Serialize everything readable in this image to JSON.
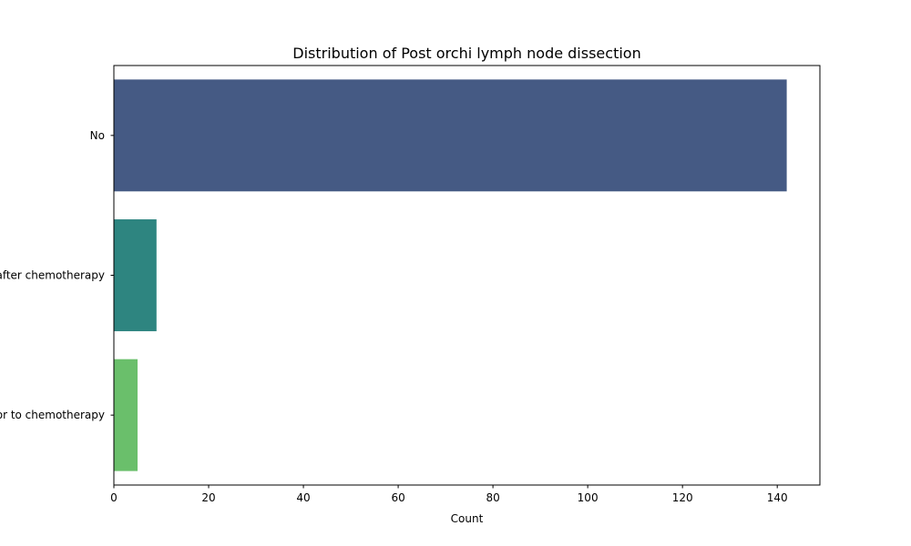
{
  "chart_data": {
    "type": "bar",
    "orientation": "horizontal",
    "title": "Distribution of Post orchi lymph node dissection",
    "xlabel": "Count",
    "ylabel": "",
    "xlim": [
      0,
      149
    ],
    "xticks": [
      0,
      20,
      40,
      60,
      80,
      100,
      120,
      140
    ],
    "categories": [
      "No",
      "Yes, after chemotherapy",
      "Yes, prior to chemotherapy"
    ],
    "values": [
      142,
      9,
      5
    ],
    "colors": [
      "#455a84",
      "#2e8580",
      "#6abf6b"
    ],
    "grid": false,
    "legend": "none"
  }
}
